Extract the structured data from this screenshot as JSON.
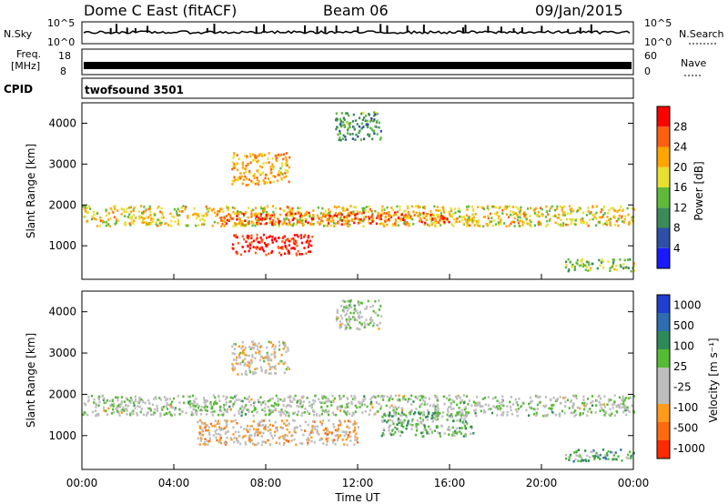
{
  "header": {
    "station": "Dome C East (fitACF)",
    "beam": "Beam 06",
    "date": "09/Jan/2015"
  },
  "strip_labels": {
    "nsky": "N.Sky",
    "nsky_top": "10^5",
    "nsky_bottom": "10^0",
    "nsearch": "N.Search",
    "nsearch_top": "10^5",
    "nsearch_bottom": "10^0",
    "freq_line1": "Freq.",
    "freq_line2": "[MHz]",
    "freq_top": "18",
    "freq_bottom": "8",
    "nave": "Nave",
    "nave_top": "60",
    "nave_bottom": "0",
    "cpid": "CPID",
    "cpid_value": "twofsound 3501"
  },
  "colors": {
    "power_scale": [
      "#1a1aff",
      "#2d4fa8",
      "#3b8a5a",
      "#5fba3a",
      "#e8e030",
      "#ffa500",
      "#ff6010",
      "#ff0000"
    ],
    "velocity_scale": [
      "#1f3fd0",
      "#2f6cb0",
      "#2f8a5a",
      "#55bb33",
      "#bdbdbd",
      "#bdbdbd",
      "#ff9a1a",
      "#ff6a10",
      "#ff2a00"
    ]
  },
  "chart_data": [
    {
      "type": "heatmap",
      "name": "power",
      "ylabel": "Slant Range [km]",
      "ylim": [
        180,
        4500
      ],
      "yticks": [
        "1000",
        "2000",
        "3000",
        "4000"
      ],
      "xlabel": "Time UT",
      "xticks": [
        "00:00",
        "04:00",
        "08:00",
        "12:00",
        "16:00",
        "20:00",
        "00:00"
      ],
      "colorbar": {
        "label": "Power [dB]",
        "ticks": [
          "4",
          "8",
          "12",
          "16",
          "20",
          "24",
          "28"
        ],
        "range": [
          0,
          30
        ]
      },
      "bands": [
        {
          "range_km": [
            1500,
            2000
          ],
          "time_h": [
            0,
            24
          ],
          "value_db": 18
        },
        {
          "range_km": [
            1550,
            1850
          ],
          "time_h": [
            6,
            16
          ],
          "value_db": 24
        },
        {
          "range_km": [
            800,
            1300
          ],
          "time_h": [
            6.5,
            10
          ],
          "value_db": 28
        },
        {
          "range_km": [
            400,
            700
          ],
          "time_h": [
            21,
            24
          ],
          "value_db": 14
        },
        {
          "range_km": [
            2500,
            3300
          ],
          "time_h": [
            6.5,
            9
          ],
          "value_db": 20
        },
        {
          "range_km": [
            3600,
            4300
          ],
          "time_h": [
            11,
            13
          ],
          "value_db": 10
        }
      ]
    },
    {
      "type": "heatmap",
      "name": "velocity",
      "ylabel": "Slant Range [km]",
      "ylim": [
        180,
        4500
      ],
      "yticks": [
        "1000",
        "2000",
        "3000",
        "4000"
      ],
      "xlabel": "Time UT",
      "xticks": [
        "00:00",
        "04:00",
        "08:00",
        "12:00",
        "16:00",
        "20:00",
        "00:00"
      ],
      "colorbar": {
        "label": "Velocity [m s⁻¹]",
        "ticks": [
          "1000",
          "500",
          "100",
          "25",
          "-25",
          "-100",
          "-500",
          "-1000"
        ],
        "range": [
          -1000,
          1000
        ]
      },
      "bands": [
        {
          "range_km": [
            1500,
            2000
          ],
          "time_h": [
            0,
            24
          ],
          "value_ms": 0
        },
        {
          "range_km": [
            800,
            1400
          ],
          "time_h": [
            5,
            12
          ],
          "value_ms": -300
        },
        {
          "range_km": [
            1000,
            1600
          ],
          "time_h": [
            13,
            17
          ],
          "value_ms": 150
        },
        {
          "range_km": [
            400,
            700
          ],
          "time_h": [
            21,
            24
          ],
          "value_ms": 300
        },
        {
          "range_km": [
            2500,
            3300
          ],
          "time_h": [
            6.5,
            9
          ],
          "value_ms": -200
        },
        {
          "range_km": [
            3600,
            4300
          ],
          "time_h": [
            11,
            13
          ],
          "value_ms": 0
        }
      ]
    }
  ]
}
